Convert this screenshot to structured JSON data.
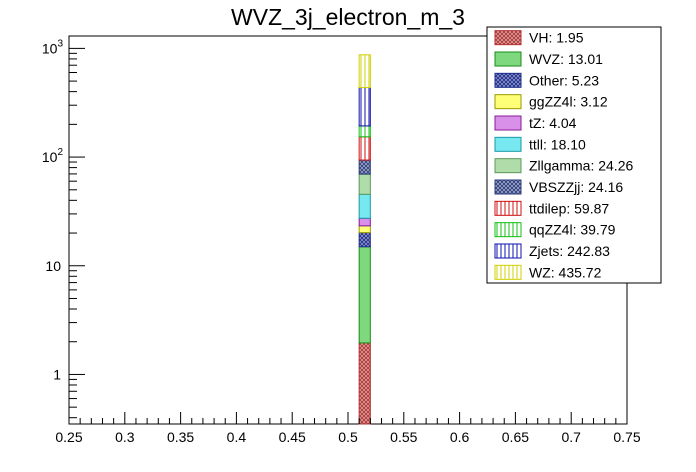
{
  "chart_data": {
    "type": "bar",
    "stacked": true,
    "title": "WVZ_3j_electron_m_3",
    "xlabel": "",
    "ylabel": "",
    "x_range": [
      0.25,
      0.75
    ],
    "y_log": true,
    "y_range": [
      0.35,
      1300
    ],
    "bin": [
      0.51,
      0.52
    ],
    "x_ticks": [
      "0.25",
      "0.3",
      "0.35",
      "0.4",
      "0.45",
      "0.5",
      "0.55",
      "0.6",
      "0.65",
      "0.7",
      "0.75"
    ],
    "y_ticks": [
      {
        "value": 1,
        "label": "1"
      },
      {
        "value": 10,
        "label": "10"
      },
      {
        "value": 100,
        "label": "10",
        "exp": "2"
      },
      {
        "value": 1000,
        "label": "10",
        "exp": "3"
      }
    ],
    "legend_position": "top-right",
    "series": [
      {
        "name": "VH",
        "label": "VH: 1.95",
        "value": 1.95,
        "color": "#b03030",
        "fill": "#d9a0a0",
        "pattern": "crosshatch"
      },
      {
        "name": "WVZ",
        "label": "WVZ: 13.01",
        "value": 13.01,
        "color": "#1a8a1a",
        "fill": "#7ed97e",
        "pattern": "solid"
      },
      {
        "name": "Other",
        "label": "Other: 5.23",
        "value": 5.23,
        "color": "#1a2a8a",
        "fill": "#8c94c8",
        "pattern": "crosshatch"
      },
      {
        "name": "ggZZ4l",
        "label": "ggZZ4l: 3.12",
        "value": 3.12,
        "color": "#999900",
        "fill": "#ffff77",
        "pattern": "solid"
      },
      {
        "name": "tZ",
        "label": "tZ: 4.04",
        "value": 4.04,
        "color": "#8a1a9a",
        "fill": "#d890e8",
        "pattern": "solid"
      },
      {
        "name": "ttll",
        "label": "ttll: 18.10",
        "value": 18.1,
        "color": "#1a9aaa",
        "fill": "#77e8f0",
        "pattern": "solid"
      },
      {
        "name": "Zllgamma",
        "label": "Zllgamma: 24.26",
        "value": 24.26,
        "color": "#5a9a5a",
        "fill": "#b0dcaa",
        "pattern": "solid"
      },
      {
        "name": "VBSZZjj",
        "label": "VBSZZjj: 24.16",
        "value": 24.16,
        "color": "#2a3a7a",
        "fill": "#a0a8c8",
        "pattern": "crosshatch"
      },
      {
        "name": "ttdilep",
        "label": "ttdilep: 59.87",
        "value": 59.87,
        "color": "#d01010",
        "fill": "#ffffff",
        "pattern": "vlines"
      },
      {
        "name": "qqZZ4l",
        "label": "qqZZ4l: 39.79",
        "value": 39.79,
        "color": "#10c010",
        "fill": "#ffffff",
        "pattern": "vlines"
      },
      {
        "name": "Zjets",
        "label": "Zjets: 242.83",
        "value": 242.83,
        "color": "#1010b0",
        "fill": "#ffffff",
        "pattern": "vlines"
      },
      {
        "name": "WZ",
        "label": "WZ: 435.72",
        "value": 435.72,
        "color": "#d0d000",
        "fill": "#ffffff",
        "pattern": "vlines"
      }
    ]
  }
}
